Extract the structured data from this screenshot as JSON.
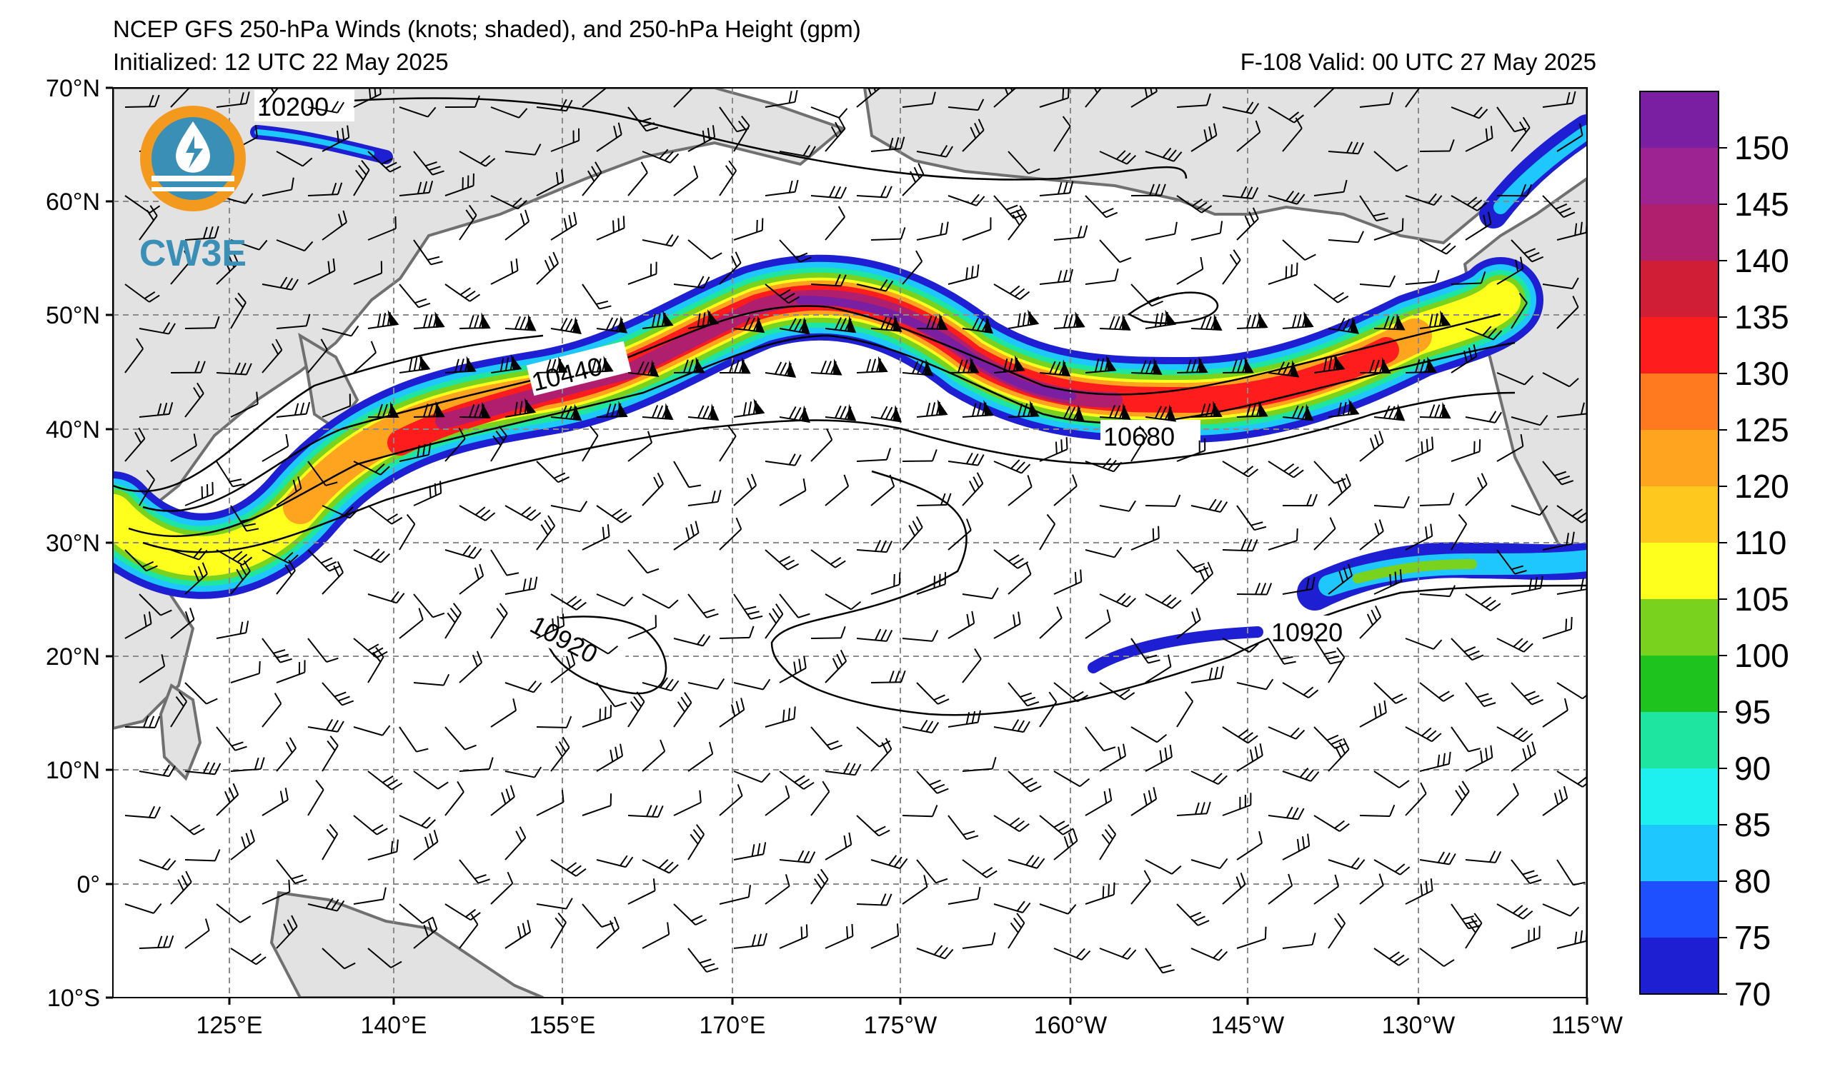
{
  "header": {
    "title": "NCEP GFS 250-hPa Winds (knots; shaded), and 250-hPa Height (gpm)",
    "initialized": "Initialized: 12 UTC 22 May 2025",
    "valid": "F-108  Valid: 00 UTC 27 May 2025"
  },
  "logo": {
    "text": "CW3E"
  },
  "map": {
    "lat_labels": [
      "70°N",
      "60°N",
      "50°N",
      "40°N",
      "30°N",
      "20°N",
      "10°N",
      "0°",
      "10°S"
    ],
    "lon_labels": [
      "125°E",
      "140°E",
      "155°E",
      "170°E",
      "175°W",
      "160°W",
      "145°W",
      "130°W",
      "115°W"
    ],
    "contour_labels": [
      "10200",
      "10440",
      "10680",
      "10920",
      "10920"
    ]
  },
  "colorbar": {
    "ticks": [
      "150",
      "145",
      "140",
      "135",
      "130",
      "125",
      "120",
      "110",
      "105",
      "100",
      "95",
      "90",
      "85",
      "80",
      "75",
      "70"
    ],
    "colors": [
      "#7a1fa2",
      "#9c2391",
      "#b01e6e",
      "#d01e36",
      "#ff1c1c",
      "#ff7a1e",
      "#ffa41e",
      "#ffc81e",
      "#ffff1e",
      "#78d21e",
      "#1ec31e",
      "#1ee6a0",
      "#1ef0f0",
      "#1ec8ff",
      "#1e50ff",
      "#1e1ed2"
    ]
  }
}
